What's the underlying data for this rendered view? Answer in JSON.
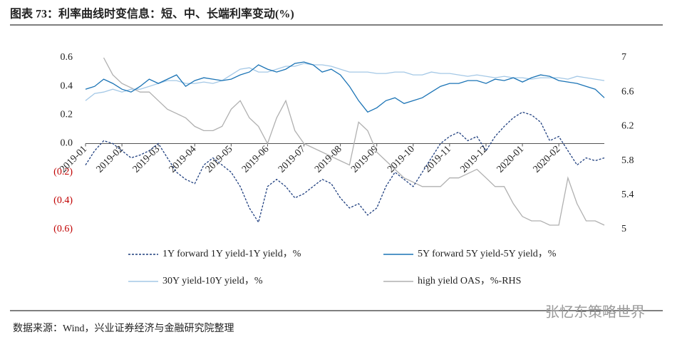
{
  "title": "图表 73：利率曲线时变信息：短、中、长端利率变动(%)",
  "source": "数据来源：Wind，兴业证券经济与金融研究院整理",
  "watermark": "张忆东策略世界",
  "chart_data": {
    "type": "line",
    "categories": [
      "2019-01",
      null,
      null,
      null,
      "2019-02",
      null,
      null,
      null,
      "2019-03",
      null,
      null,
      null,
      "2019-04",
      null,
      null,
      null,
      "2019-05",
      null,
      null,
      null,
      "2019-06",
      null,
      null,
      null,
      "2019-07",
      null,
      null,
      null,
      "2019-08",
      null,
      null,
      null,
      "2019-09",
      null,
      null,
      null,
      "2019-10",
      null,
      null,
      null,
      "2019-11",
      null,
      null,
      null,
      "2019-12",
      null,
      null,
      null,
      "2020-01",
      null,
      null,
      null,
      "2020-02",
      null,
      null,
      null,
      null,
      null
    ],
    "series": [
      {
        "name": "1Y forward 1Y yield-1Y yield，%",
        "color": "#1f3f7f",
        "style": "dashed",
        "values": [
          -0.15,
          -0.05,
          0.02,
          0.0,
          -0.05,
          -0.1,
          -0.08,
          -0.05,
          0.0,
          -0.1,
          -0.2,
          -0.25,
          -0.28,
          -0.15,
          -0.1,
          -0.15,
          -0.2,
          -0.3,
          -0.45,
          -0.55,
          -0.3,
          -0.25,
          -0.3,
          -0.38,
          -0.35,
          -0.3,
          -0.25,
          -0.28,
          -0.38,
          -0.45,
          -0.42,
          -0.5,
          -0.45,
          -0.3,
          -0.2,
          -0.25,
          -0.3,
          -0.2,
          -0.1,
          0.0,
          0.05,
          0.08,
          0.02,
          0.05,
          -0.05,
          0.05,
          0.12,
          0.18,
          0.22,
          0.2,
          0.15,
          0.02,
          0.05,
          -0.05,
          -0.15,
          -0.1,
          -0.12,
          -0.1
        ]
      },
      {
        "name": "5Y forward 5Y yield-5Y yield，%",
        "color": "#1a73b5",
        "style": "solid",
        "values": [
          0.38,
          0.4,
          0.45,
          0.42,
          0.38,
          0.36,
          0.4,
          0.45,
          0.42,
          0.45,
          0.48,
          0.4,
          0.44,
          0.46,
          0.45,
          0.44,
          0.45,
          0.48,
          0.5,
          0.55,
          0.52,
          0.5,
          0.52,
          0.56,
          0.57,
          0.55,
          0.5,
          0.52,
          0.48,
          0.4,
          0.3,
          0.22,
          0.25,
          0.3,
          0.32,
          0.28,
          0.3,
          0.32,
          0.36,
          0.4,
          0.42,
          0.42,
          0.44,
          0.44,
          0.42,
          0.45,
          0.44,
          0.46,
          0.43,
          0.46,
          0.48,
          0.47,
          0.44,
          0.43,
          0.42,
          0.4,
          0.38,
          0.32
        ]
      },
      {
        "name": "30Y yield-10Y yield，%",
        "color": "#a4c8e6",
        "style": "solid",
        "values": [
          0.3,
          0.35,
          0.36,
          0.38,
          0.36,
          0.38,
          0.38,
          0.4,
          0.42,
          0.44,
          0.44,
          0.42,
          0.42,
          0.43,
          0.42,
          0.44,
          0.48,
          0.52,
          0.53,
          0.5,
          0.5,
          0.52,
          0.54,
          0.54,
          0.56,
          0.55,
          0.55,
          0.54,
          0.52,
          0.5,
          0.5,
          0.5,
          0.49,
          0.49,
          0.5,
          0.5,
          0.48,
          0.48,
          0.5,
          0.49,
          0.49,
          0.48,
          0.47,
          0.48,
          0.47,
          0.46,
          0.47,
          0.46,
          0.46,
          0.45,
          0.46,
          0.46,
          0.46,
          0.45,
          0.47,
          0.46,
          0.45,
          0.44
        ]
      },
      {
        "name": "high yield OAS，%-RHS",
        "color": "#b0b0b0",
        "style": "solid",
        "axis": "y2",
        "values": [
          null,
          null,
          7.0,
          6.8,
          6.7,
          6.65,
          6.6,
          6.6,
          6.5,
          6.4,
          6.35,
          6.3,
          6.2,
          6.15,
          6.15,
          6.2,
          6.4,
          6.5,
          6.3,
          6.2,
          6.0,
          6.3,
          6.5,
          6.15,
          6.0,
          5.95,
          5.9,
          5.85,
          5.8,
          5.75,
          6.25,
          6.15,
          5.9,
          5.8,
          5.7,
          5.6,
          5.55,
          5.5,
          5.5,
          5.5,
          5.6,
          5.6,
          5.65,
          5.7,
          5.6,
          5.5,
          5.5,
          5.3,
          5.15,
          5.1,
          5.1,
          5.05,
          5.05,
          5.6,
          5.3,
          5.1,
          5.1,
          5.05
        ]
      }
    ],
    "ylim": [
      -0.6,
      0.6
    ],
    "yticks": [
      {
        "value": -0.6,
        "label": "(0.6)"
      },
      {
        "value": -0.4,
        "label": "(0.4)"
      },
      {
        "value": -0.2,
        "label": "(0.2)"
      },
      {
        "value": 0,
        "label": "0.0"
      },
      0.2,
      0.4,
      0.6
    ],
    "y2lim": [
      5,
      7
    ],
    "y2ticks": [
      5,
      5.4,
      5.8,
      6.2,
      6.6,
      7
    ],
    "grid": false
  }
}
